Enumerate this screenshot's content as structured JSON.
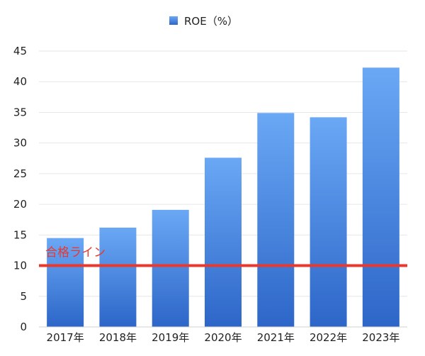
{
  "chart_data": {
    "type": "bar",
    "categories": [
      "2017年",
      "2018年",
      "2019年",
      "2020年",
      "2021年",
      "2022年",
      "2023年"
    ],
    "series": [
      {
        "name": "ROE（%）",
        "values": [
          14.5,
          16.2,
          19.1,
          27.6,
          34.9,
          34.2,
          42.3
        ],
        "color": "#3f7fe0"
      }
    ],
    "ylim": [
      0,
      45
    ],
    "yticks": [
      0,
      5,
      10,
      15,
      20,
      25,
      30,
      35,
      40,
      45
    ],
    "grid": true,
    "legend": "top",
    "reference_line": {
      "value": 10,
      "label": "合格ライン",
      "color": "#e8392f"
    }
  }
}
